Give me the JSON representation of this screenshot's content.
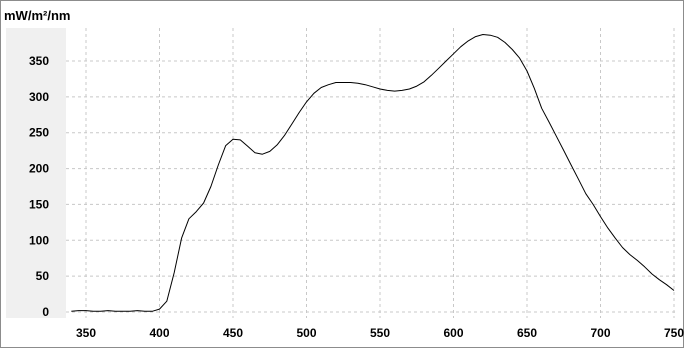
{
  "chart_data": {
    "type": "line",
    "title": "",
    "xlabel": "",
    "ylabel": "mW/m²/nm",
    "xlim": [
      340,
      750
    ],
    "ylim": [
      0,
      390
    ],
    "grid": true,
    "legend": "none",
    "x_ticks": [
      350,
      400,
      450,
      500,
      550,
      600,
      650,
      700,
      750
    ],
    "y_ticks": [
      0,
      50,
      100,
      150,
      200,
      250,
      300,
      350
    ],
    "series": [
      {
        "color": "#000000",
        "x": [
          340,
          345,
          350,
          355,
          360,
          365,
          370,
          375,
          380,
          385,
          390,
          395,
          400,
          405,
          410,
          415,
          420,
          425,
          430,
          435,
          440,
          445,
          450,
          455,
          460,
          465,
          470,
          475,
          480,
          485,
          490,
          495,
          500,
          505,
          510,
          515,
          520,
          525,
          530,
          535,
          540,
          545,
          550,
          555,
          560,
          565,
          570,
          575,
          580,
          585,
          590,
          595,
          600,
          605,
          610,
          615,
          620,
          625,
          630,
          635,
          640,
          645,
          650,
          655,
          660,
          665,
          670,
          675,
          680,
          685,
          690,
          695,
          700,
          705,
          710,
          715,
          720,
          725,
          730,
          735,
          740,
          745,
          750
        ],
        "values": [
          1,
          2,
          2,
          1,
          1,
          2,
          1,
          1,
          1,
          2,
          1,
          1,
          4,
          15,
          55,
          103,
          130,
          140,
          152,
          175,
          205,
          232,
          241,
          240,
          231,
          222,
          220,
          224,
          233,
          246,
          262,
          278,
          293,
          305,
          313,
          317,
          320,
          320,
          320,
          319,
          317,
          314,
          311,
          309,
          308,
          309,
          311,
          315,
          321,
          330,
          340,
          350,
          360,
          370,
          378,
          384,
          387,
          386,
          383,
          376,
          366,
          354,
          336,
          312,
          284,
          265,
          245,
          225,
          205,
          185,
          165,
          150,
          133,
          117,
          103,
          90,
          80,
          72,
          63,
          53,
          45,
          38,
          30
        ]
      }
    ]
  }
}
